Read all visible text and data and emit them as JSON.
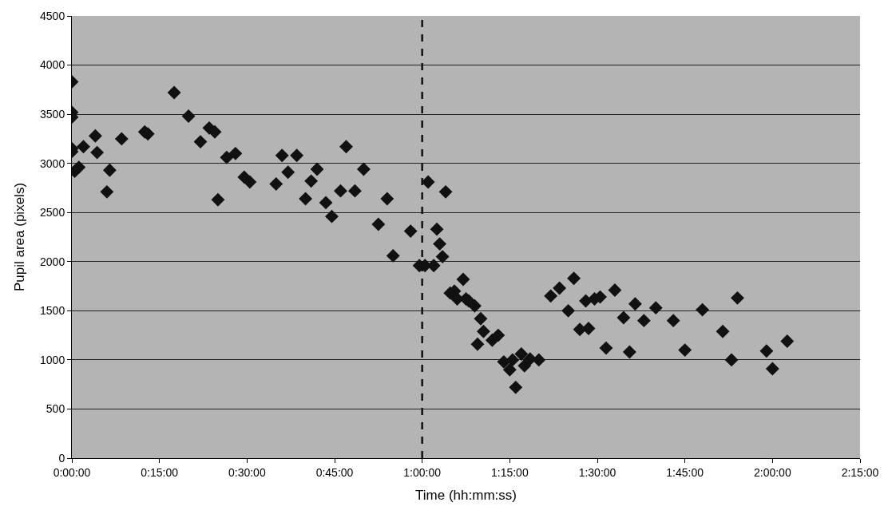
{
  "chart_data": {
    "type": "scatter",
    "xlabel": "Time (hh:mm:ss)",
    "ylabel": "Pupil area (pixels)",
    "x": [
      0,
      0,
      0,
      0,
      0,
      0.008,
      0.02,
      0.033,
      0.067,
      0.072,
      0.1,
      0.108,
      0.142,
      0.208,
      0.217,
      0.292,
      0.333,
      0.367,
      0.392,
      0.408,
      0.417,
      0.442,
      0.467,
      0.492,
      0.508,
      0.583,
      0.6,
      0.617,
      0.642,
      0.667,
      0.683,
      0.7,
      0.725,
      0.742,
      0.767,
      0.783,
      0.808,
      0.833,
      0.875,
      0.9,
      0.917,
      0.967,
      0.992,
      1.008,
      1.017,
      1.033,
      1.042,
      1.05,
      1.058,
      1.067,
      1.08,
      1.092,
      1.1,
      1.117,
      1.125,
      1.133,
      1.15,
      1.158,
      1.167,
      1.175,
      1.2,
      1.217,
      1.233,
      1.25,
      1.258,
      1.267,
      1.283,
      1.292,
      1.308,
      1.333,
      1.367,
      1.392,
      1.417,
      1.433,
      1.45,
      1.467,
      1.475,
      1.492,
      1.508,
      1.525,
      1.55,
      1.575,
      1.592,
      1.608,
      1.633,
      1.667,
      1.717,
      1.75,
      1.8,
      1.858,
      1.883,
      1.9,
      1.983,
      2.0,
      2.042
    ],
    "values": [
      3830,
      3520,
      3470,
      3150,
      3120,
      2920,
      2960,
      3170,
      3280,
      3110,
      2710,
      2930,
      3250,
      3320,
      3300,
      3720,
      3480,
      3220,
      3360,
      3320,
      2630,
      3060,
      3100,
      2860,
      2810,
      2790,
      3080,
      2910,
      3080,
      2640,
      2820,
      2940,
      2600,
      2460,
      2720,
      3170,
      2720,
      2940,
      2380,
      2640,
      2060,
      2310,
      1960,
      1960,
      2810,
      1960,
      2330,
      2180,
      2050,
      2710,
      1680,
      1700,
      1620,
      1820,
      1620,
      1600,
      1550,
      1160,
      1420,
      1290,
      1200,
      1250,
      980,
      900,
      1000,
      720,
      1060,
      940,
      1010,
      1000,
      1650,
      1730,
      1500,
      1830,
      1310,
      1600,
      1320,
      1620,
      1640,
      1120,
      1710,
      1430,
      1080,
      1570,
      1400,
      1530,
      1400,
      1100,
      1510,
      1290,
      1000,
      1630,
      1090,
      910,
      1190
    ],
    "color": "#111111",
    "marker": "diamond",
    "xlim": [
      0,
      2.25
    ],
    "xticks": [
      {
        "value": 0,
        "label": "0:00:00"
      },
      {
        "value": 0.25,
        "label": "0:15:00"
      },
      {
        "value": 0.5,
        "label": "0:30:00"
      },
      {
        "value": 0.75,
        "label": "0:45:00"
      },
      {
        "value": 1,
        "label": "1:00:00"
      },
      {
        "value": 1.25,
        "label": "1:15:00"
      },
      {
        "value": 1.5,
        "label": "1:30:00"
      },
      {
        "value": 1.75,
        "label": "1:45:00"
      },
      {
        "value": 2,
        "label": "2:00:00"
      },
      {
        "value": 2.25,
        "label": "2:15:00"
      }
    ],
    "ylim": [
      0,
      4500
    ],
    "yticks": [
      0,
      500,
      1000,
      1500,
      2000,
      2500,
      3000,
      3500,
      4000,
      4500
    ],
    "grid": "y",
    "legend": false,
    "ref_lines": [
      {
        "axis": "x",
        "value": 1,
        "color": "#111111",
        "line_style": "dashed"
      }
    ]
  }
}
